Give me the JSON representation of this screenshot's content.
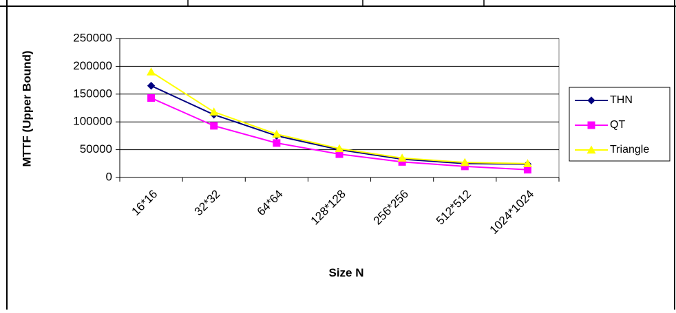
{
  "chart_data": {
    "type": "line",
    "title": "",
    "xlabel": "Size N",
    "ylabel": "MTTF (Upper Bound)",
    "categories": [
      "16*16",
      "32*32",
      "64*64",
      "128*128",
      "256*256",
      "512*512",
      "1024*1024"
    ],
    "ylim": [
      0,
      250000
    ],
    "yticks": [
      0,
      50000,
      100000,
      150000,
      200000,
      250000
    ],
    "grid": "horizontal-major",
    "legend_position": "right",
    "series": [
      {
        "name": "THN",
        "color": "#000080",
        "marker": "diamond",
        "values": [
          165000,
          113000,
          75000,
          50000,
          33000,
          25000,
          24000
        ]
      },
      {
        "name": "QT",
        "color": "#FF00FF",
        "marker": "square",
        "values": [
          143000,
          93000,
          62000,
          42000,
          28000,
          20000,
          14000
        ]
      },
      {
        "name": "Triangle",
        "color": "#FFFF00",
        "marker": "triangle",
        "values": [
          190000,
          118000,
          78000,
          52000,
          35000,
          27000,
          25000
        ]
      }
    ]
  }
}
